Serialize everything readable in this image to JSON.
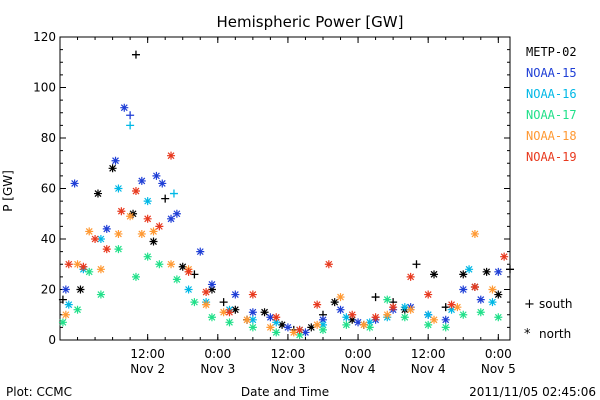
{
  "chart_data": {
    "type": "scatter",
    "title": "Hemispheric Power [GW]",
    "ylabel": "P [GW]",
    "xlabel": "Date and Time",
    "ylim": [
      0,
      120
    ],
    "yticks": [
      0,
      20,
      40,
      60,
      80,
      100,
      120
    ],
    "xlim": [
      "2011-11-01T21:00",
      "2011-11-05T02:00"
    ],
    "xticks": [
      {
        "time": "2011-11-02T12:00",
        "label1": "12:00",
        "label2": "Nov 2"
      },
      {
        "time": "2011-11-03T00:00",
        "label1": "0:00",
        "label2": "Nov 3"
      },
      {
        "time": "2011-11-03T12:00",
        "label1": "12:00",
        "label2": "Nov 3"
      },
      {
        "time": "2011-11-04T00:00",
        "label1": "0:00",
        "label2": "Nov 4"
      },
      {
        "time": "2011-11-04T12:00",
        "label1": "12:00",
        "label2": "Nov 4"
      },
      {
        "time": "2011-11-05T00:00",
        "label1": "0:00",
        "label2": "Nov 5"
      }
    ],
    "grid": false,
    "legend_position": "right",
    "series": [
      {
        "name": "METP-02",
        "color": "#000000",
        "points": [
          [
            "2011-11-01T21:30",
            16,
            "s"
          ],
          [
            "2011-11-02T00:30",
            20,
            "n"
          ],
          [
            "2011-11-02T03:30",
            58,
            "n"
          ],
          [
            "2011-11-02T06:00",
            68,
            "n"
          ],
          [
            "2011-11-02T09:30",
            50,
            "n"
          ],
          [
            "2011-11-02T10:00",
            113,
            "s"
          ],
          [
            "2011-11-02T13:00",
            39,
            "n"
          ],
          [
            "2011-11-02T15:00",
            56,
            "s"
          ],
          [
            "2011-11-02T18:00",
            29,
            "n"
          ],
          [
            "2011-11-02T20:00",
            26,
            "s"
          ],
          [
            "2011-11-02T23:00",
            20,
            "n"
          ],
          [
            "2011-11-03T01:00",
            15,
            "s"
          ],
          [
            "2011-11-03T03:00",
            12,
            "n"
          ],
          [
            "2011-11-03T05:00",
            8,
            "s"
          ],
          [
            "2011-11-03T08:00",
            11,
            "n"
          ],
          [
            "2011-11-03T11:00",
            6,
            "n"
          ],
          [
            "2011-11-03T13:00",
            4,
            "s"
          ],
          [
            "2011-11-03T16:00",
            5,
            "n"
          ],
          [
            "2011-11-03T18:00",
            10,
            "s"
          ],
          [
            "2011-11-03T20:00",
            15,
            "n"
          ],
          [
            "2011-11-03T23:00",
            8,
            "n"
          ],
          [
            "2011-11-04T01:00",
            6,
            "s"
          ],
          [
            "2011-11-04T03:00",
            17,
            "s"
          ],
          [
            "2011-11-04T06:00",
            15,
            "s"
          ],
          [
            "2011-11-04T08:00",
            12,
            "n"
          ],
          [
            "2011-11-04T10:00",
            30,
            "s"
          ],
          [
            "2011-11-04T13:00",
            26,
            "n"
          ],
          [
            "2011-11-04T15:00",
            13,
            "s"
          ],
          [
            "2011-11-04T18:00",
            26,
            "n"
          ],
          [
            "2011-11-04T20:00",
            21,
            "n"
          ],
          [
            "2011-11-04T22:00",
            27,
            "n"
          ],
          [
            "2011-11-05T00:00",
            18,
            "n"
          ],
          [
            "2011-11-05T02:00",
            28,
            "s"
          ]
        ]
      },
      {
        "name": "NOAA-15",
        "color": "#1f3fd6",
        "points": [
          [
            "2011-11-01T22:00",
            20,
            "n"
          ],
          [
            "2011-11-01T23:30",
            62,
            "n"
          ],
          [
            "2011-11-02T05:00",
            44,
            "n"
          ],
          [
            "2011-11-02T06:30",
            71,
            "n"
          ],
          [
            "2011-11-02T08:00",
            92,
            "n"
          ],
          [
            "2011-11-02T09:00",
            89,
            "s"
          ],
          [
            "2011-11-02T11:00",
            63,
            "n"
          ],
          [
            "2011-11-02T13:30",
            65,
            "n"
          ],
          [
            "2011-11-02T14:30",
            62,
            "n"
          ],
          [
            "2011-11-02T16:00",
            48,
            "n"
          ],
          [
            "2011-11-02T17:00",
            50,
            "n"
          ],
          [
            "2011-11-02T21:00",
            35,
            "n"
          ],
          [
            "2011-11-02T23:00",
            22,
            "n"
          ],
          [
            "2011-11-03T03:00",
            18,
            "n"
          ],
          [
            "2011-11-03T06:00",
            11,
            "n"
          ],
          [
            "2011-11-03T09:00",
            9,
            "n"
          ],
          [
            "2011-11-03T12:00",
            5,
            "n"
          ],
          [
            "2011-11-03T15:00",
            3,
            "n"
          ],
          [
            "2011-11-03T18:00",
            8,
            "n"
          ],
          [
            "2011-11-03T21:00",
            12,
            "n"
          ],
          [
            "2011-11-04T00:00",
            7,
            "n"
          ],
          [
            "2011-11-04T03:00",
            8,
            "n"
          ],
          [
            "2011-11-04T06:00",
            12,
            "n"
          ],
          [
            "2011-11-04T09:00",
            13,
            "n"
          ],
          [
            "2011-11-04T12:00",
            10,
            "n"
          ],
          [
            "2011-11-04T15:00",
            8,
            "n"
          ],
          [
            "2011-11-04T18:00",
            20,
            "n"
          ],
          [
            "2011-11-04T21:00",
            16,
            "n"
          ],
          [
            "2011-11-05T00:00",
            27,
            "n"
          ]
        ]
      },
      {
        "name": "NOAA-16",
        "color": "#00b8e6",
        "points": [
          [
            "2011-11-01T22:30",
            14,
            "n"
          ],
          [
            "2011-11-02T01:00",
            28,
            "n"
          ],
          [
            "2011-11-02T04:00",
            40,
            "n"
          ],
          [
            "2011-11-02T07:00",
            60,
            "n"
          ],
          [
            "2011-11-02T09:00",
            85,
            "s"
          ],
          [
            "2011-11-02T12:00",
            55,
            "n"
          ],
          [
            "2011-11-02T16:30",
            58,
            "s"
          ],
          [
            "2011-11-02T19:00",
            20,
            "n"
          ],
          [
            "2011-11-02T22:00",
            15,
            "n"
          ],
          [
            "2011-11-03T02:00",
            12,
            "n"
          ],
          [
            "2011-11-03T06:00",
            8,
            "n"
          ],
          [
            "2011-11-03T10:00",
            7,
            "n"
          ],
          [
            "2011-11-03T14:00",
            4,
            "n"
          ],
          [
            "2011-11-03T18:00",
            6,
            "n"
          ],
          [
            "2011-11-03T22:00",
            9,
            "n"
          ],
          [
            "2011-11-04T02:00",
            7,
            "n"
          ],
          [
            "2011-11-04T05:00",
            9,
            "n"
          ],
          [
            "2011-11-04T08:00",
            13,
            "n"
          ],
          [
            "2011-11-04T12:00",
            10,
            "n"
          ],
          [
            "2011-11-04T16:00",
            12,
            "n"
          ],
          [
            "2011-11-04T19:00",
            28,
            "n"
          ],
          [
            "2011-11-04T23:00",
            15,
            "n"
          ]
        ]
      },
      {
        "name": "NOAA-17",
        "color": "#21e08a",
        "points": [
          [
            "2011-11-01T21:30",
            7,
            "n"
          ],
          [
            "2011-11-02T00:00",
            12,
            "n"
          ],
          [
            "2011-11-02T02:00",
            27,
            "n"
          ],
          [
            "2011-11-02T04:00",
            18,
            "n"
          ],
          [
            "2011-11-02T07:00",
            36,
            "n"
          ],
          [
            "2011-11-02T10:00",
            25,
            "n"
          ],
          [
            "2011-11-02T12:00",
            33,
            "n"
          ],
          [
            "2011-11-02T14:00",
            30,
            "n"
          ],
          [
            "2011-11-02T17:00",
            24,
            "n"
          ],
          [
            "2011-11-02T20:00",
            15,
            "n"
          ],
          [
            "2011-11-02T23:00",
            9,
            "n"
          ],
          [
            "2011-11-03T02:00",
            7,
            "n"
          ],
          [
            "2011-11-03T06:00",
            5,
            "n"
          ],
          [
            "2011-11-03T10:00",
            3,
            "n"
          ],
          [
            "2011-11-03T14:00",
            2,
            "n"
          ],
          [
            "2011-11-03T18:00",
            4,
            "n"
          ],
          [
            "2011-11-03T22:00",
            6,
            "n"
          ],
          [
            "2011-11-04T02:00",
            5,
            "n"
          ],
          [
            "2011-11-04T05:00",
            16,
            "n"
          ],
          [
            "2011-11-04T08:00",
            9,
            "n"
          ],
          [
            "2011-11-04T12:00",
            6,
            "n"
          ],
          [
            "2011-11-04T15:00",
            5,
            "n"
          ],
          [
            "2011-11-04T18:00",
            10,
            "n"
          ],
          [
            "2011-11-04T21:00",
            11,
            "n"
          ],
          [
            "2011-11-05T00:00",
            9,
            "n"
          ]
        ]
      },
      {
        "name": "NOAA-18",
        "color": "#ff9933",
        "points": [
          [
            "2011-11-01T22:00",
            10,
            "n"
          ],
          [
            "2011-11-02T00:00",
            30,
            "n"
          ],
          [
            "2011-11-02T02:00",
            43,
            "n"
          ],
          [
            "2011-11-02T04:00",
            28,
            "n"
          ],
          [
            "2011-11-02T07:00",
            42,
            "n"
          ],
          [
            "2011-11-02T09:00",
            49,
            "n"
          ],
          [
            "2011-11-02T11:00",
            42,
            "n"
          ],
          [
            "2011-11-02T13:00",
            43,
            "n"
          ],
          [
            "2011-11-02T16:00",
            30,
            "n"
          ],
          [
            "2011-11-02T19:00",
            28,
            "n"
          ],
          [
            "2011-11-02T22:00",
            14,
            "n"
          ],
          [
            "2011-11-03T01:00",
            11,
            "n"
          ],
          [
            "2011-11-03T05:00",
            8,
            "n"
          ],
          [
            "2011-11-03T09:00",
            5,
            "n"
          ],
          [
            "2011-11-03T13:00",
            3,
            "n"
          ],
          [
            "2011-11-03T17:00",
            6,
            "n"
          ],
          [
            "2011-11-03T21:00",
            17,
            "n"
          ],
          [
            "2011-11-04T01:00",
            6,
            "n"
          ],
          [
            "2011-11-04T05:00",
            10,
            "n"
          ],
          [
            "2011-11-04T09:00",
            12,
            "n"
          ],
          [
            "2011-11-04T13:00",
            8,
            "n"
          ],
          [
            "2011-11-04T17:00",
            13,
            "n"
          ],
          [
            "2011-11-04T20:00",
            42,
            "n"
          ],
          [
            "2011-11-04T23:00",
            20,
            "n"
          ]
        ]
      },
      {
        "name": "NOAA-19",
        "color": "#e8391e",
        "points": [
          [
            "2011-11-01T22:30",
            30,
            "n"
          ],
          [
            "2011-11-02T01:00",
            29,
            "n"
          ],
          [
            "2011-11-02T03:00",
            40,
            "n"
          ],
          [
            "2011-11-02T05:00",
            36,
            "n"
          ],
          [
            "2011-11-02T07:30",
            51,
            "n"
          ],
          [
            "2011-11-02T10:00",
            59,
            "n"
          ],
          [
            "2011-11-02T12:00",
            48,
            "n"
          ],
          [
            "2011-11-02T14:00",
            45,
            "n"
          ],
          [
            "2011-11-02T16:00",
            73,
            "n"
          ],
          [
            "2011-11-02T19:00",
            27,
            "n"
          ],
          [
            "2011-11-02T22:00",
            19,
            "n"
          ],
          [
            "2011-11-03T02:00",
            11,
            "n"
          ],
          [
            "2011-11-03T06:00",
            18,
            "n"
          ],
          [
            "2011-11-03T10:00",
            9,
            "n"
          ],
          [
            "2011-11-03T14:00",
            4,
            "n"
          ],
          [
            "2011-11-03T17:00",
            14,
            "n"
          ],
          [
            "2011-11-03T19:00",
            30,
            "n"
          ],
          [
            "2011-11-03T23:00",
            10,
            "n"
          ],
          [
            "2011-11-04T03:00",
            9,
            "n"
          ],
          [
            "2011-11-04T06:00",
            13,
            "n"
          ],
          [
            "2011-11-04T09:00",
            25,
            "n"
          ],
          [
            "2011-11-04T12:00",
            18,
            "n"
          ],
          [
            "2011-11-04T16:00",
            14,
            "n"
          ],
          [
            "2011-11-04T20:00",
            21,
            "n"
          ],
          [
            "2011-11-05T01:00",
            33,
            "n"
          ]
        ]
      }
    ],
    "marker_legend": [
      {
        "symbol": "+",
        "label": "south"
      },
      {
        "symbol": "*",
        "label": "north"
      }
    ]
  },
  "footer": {
    "left": "Plot: CCMC",
    "center": "Date and Time",
    "right": "2011/11/05 02:45:06"
  }
}
